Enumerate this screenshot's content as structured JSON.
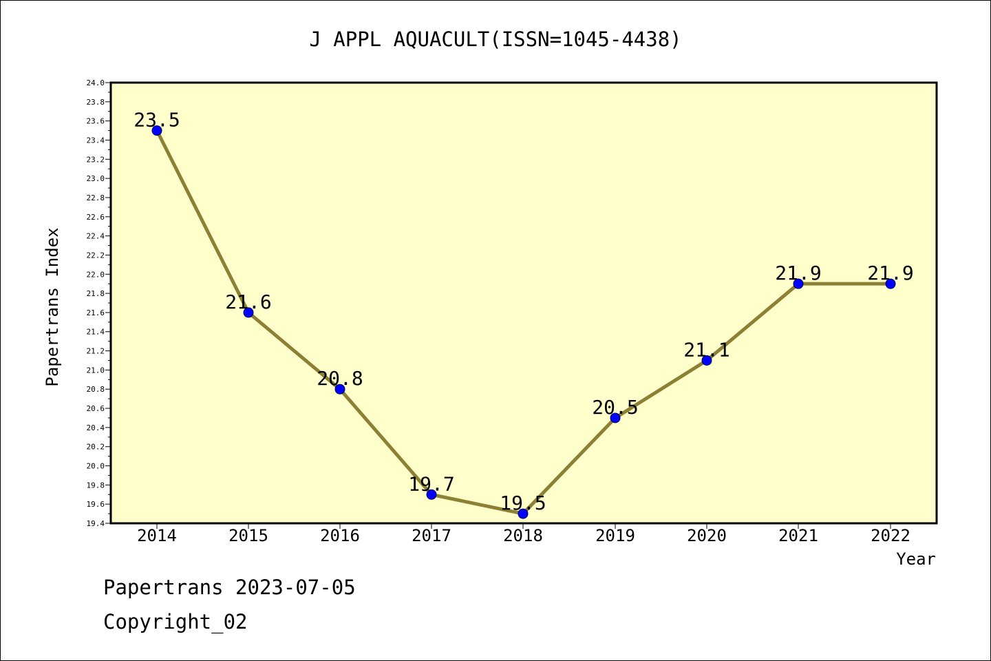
{
  "chart_data": {
    "type": "line",
    "title": "J APPL AQUACULT(ISSN=1045-4438)",
    "xlabel": "Year",
    "ylabel": "Papertrans Index",
    "categories": [
      "2014",
      "2015",
      "2016",
      "2017",
      "2018",
      "2019",
      "2020",
      "2021",
      "2022"
    ],
    "series": [
      {
        "values": [
          23.5,
          21.6,
          20.8,
          19.7,
          19.5,
          20.5,
          21.1,
          21.9,
          21.9
        ],
        "data_labels": [
          "23.5",
          "21.6",
          "20.8",
          "19.7",
          "19.5",
          "20.5",
          "21.1",
          "21.9",
          "21.9"
        ]
      }
    ],
    "ylim": [
      19.4,
      24.0
    ],
    "y_ticks": [
      "19.4",
      "19.6",
      "19.8",
      "20.0",
      "20.2",
      "20.4",
      "20.6",
      "20.8",
      "21.0",
      "21.2",
      "21.4",
      "21.6",
      "21.8",
      "22.0",
      "22.2",
      "22.4",
      "22.6",
      "22.8",
      "23.0",
      "23.2",
      "23.4",
      "23.6",
      "23.8",
      "24.0"
    ],
    "grid": false,
    "legend": "none",
    "colors": {
      "plot_background": "#ffffcc",
      "line": "#8b8034",
      "marker": "#0000ff"
    }
  },
  "footer": {
    "line1": "Papertrans 2023-07-05",
    "line2": "Copyright_02"
  }
}
